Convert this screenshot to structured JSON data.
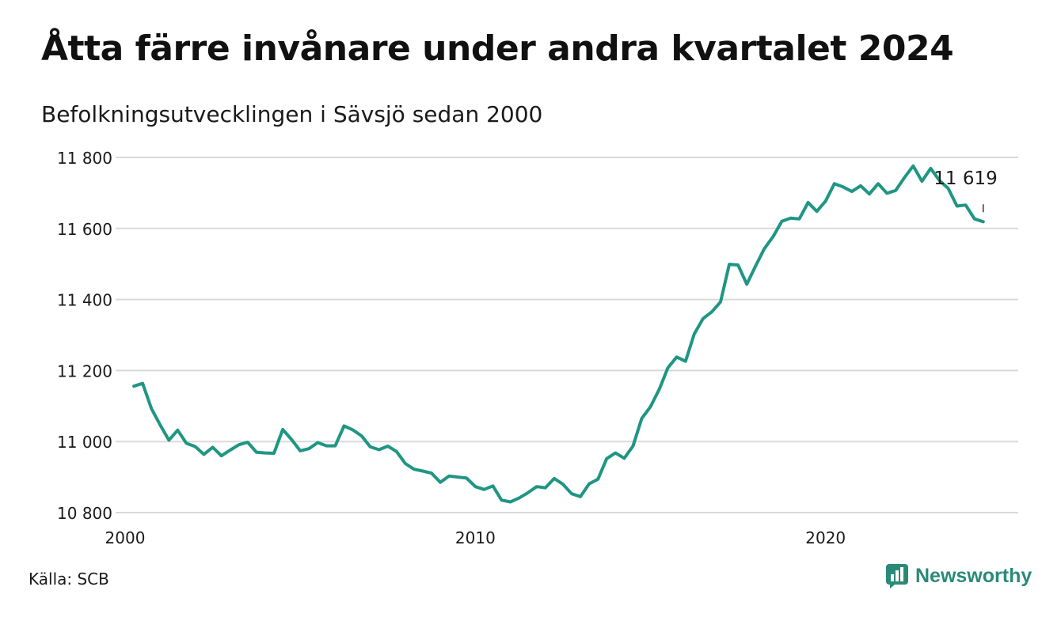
{
  "header": {
    "title": "Åtta färre invånare under andra kvartalet 2024",
    "subtitle": "Befolkningsutvecklingen i Sävsjö sedan 2000"
  },
  "footer": {
    "source": "Källa: SCB",
    "brand": "Newsworthy"
  },
  "colors": {
    "line": "#1f9683",
    "grid": "#d9d9d9",
    "brand": "#2a8a78"
  },
  "chart_data": {
    "type": "line",
    "title": "Åtta färre invånare under andra kvartalet 2024",
    "subtitle": "Befolkningsutvecklingen i Sävsjö sedan 2000",
    "xlabel": "",
    "ylabel": "",
    "xlim": [
      2000,
      2025.5
    ],
    "ylim": [
      10800,
      11800
    ],
    "x_ticks": [
      2000,
      2010,
      2020
    ],
    "x_tick_labels": [
      "2000",
      "2010",
      "2020"
    ],
    "y_ticks": [
      10800,
      11000,
      11200,
      11400,
      11600,
      11800
    ],
    "y_tick_labels": [
      "10 800",
      "11 000",
      "11 200",
      "11 400",
      "11 600",
      "11 800"
    ],
    "grid": true,
    "annotation": {
      "text": "11 619"
    },
    "series": [
      {
        "x": [
          2000.25,
          2000.5,
          2000.75,
          2001.0,
          2001.25,
          2001.5,
          2001.75,
          2002.0,
          2002.25,
          2002.5,
          2002.75,
          2003.0,
          2003.25,
          2003.5,
          2003.75,
          2004.0,
          2004.25,
          2004.5,
          2004.75,
          2005.0,
          2005.25,
          2005.5,
          2005.75,
          2006.0,
          2006.25,
          2006.5,
          2006.75,
          2007.0,
          2007.25,
          2007.5,
          2007.75,
          2008.0,
          2008.25,
          2008.5,
          2008.75,
          2009.0,
          2009.25,
          2009.5,
          2009.75,
          2010.0,
          2010.25,
          2010.5,
          2010.75,
          2011.0,
          2011.25,
          2011.5,
          2011.75,
          2012.0,
          2012.25,
          2012.5,
          2012.75,
          2013.0,
          2013.25,
          2013.5,
          2013.75,
          2014.0,
          2014.25,
          2014.5,
          2014.75,
          2015.0,
          2015.25,
          2015.5,
          2015.75,
          2016.0,
          2016.25,
          2016.5,
          2016.75,
          2017.0,
          2017.25,
          2017.5,
          2017.75,
          2018.0,
          2018.25,
          2018.5,
          2018.75,
          2019.0,
          2019.25,
          2019.5,
          2019.75,
          2020.0,
          2020.25,
          2020.5,
          2020.75,
          2021.0,
          2021.25,
          2021.5,
          2021.75,
          2022.0,
          2022.25,
          2022.5,
          2022.75,
          2023.0,
          2023.25,
          2023.5,
          2023.75,
          2024.0,
          2024.25,
          2024.5
        ],
        "y": [
          11156,
          11164,
          11093,
          11047,
          11004,
          11032,
          10995,
          10986,
          10964,
          10984,
          10960,
          10976,
          10991,
          10998,
          10970,
          10968,
          10967,
          11034,
          11006,
          10974,
          10980,
          10997,
          10988,
          10988,
          11044,
          11033,
          11016,
          10985,
          10977,
          10987,
          10972,
          10938,
          10922,
          10917,
          10911,
          10885,
          10903,
          10900,
          10897,
          10873,
          10865,
          10875,
          10835,
          10830,
          10841,
          10856,
          10873,
          10870,
          10896,
          10880,
          10853,
          10845,
          10881,
          10894,
          10952,
          10968,
          10953,
          10987,
          11065,
          11098,
          11147,
          11208,
          11238,
          11226,
          11303,
          11346,
          11365,
          11393,
          11499,
          11497,
          11443,
          11494,
          11543,
          11577,
          11620,
          11629,
          11627,
          11673,
          11648,
          11677,
          11726,
          11717,
          11704,
          11720,
          11697,
          11726,
          11699,
          11707,
          11743,
          11776,
          11733,
          11769,
          11735,
          11713,
          11663,
          11666,
          11627,
          11619
        ]
      }
    ]
  }
}
